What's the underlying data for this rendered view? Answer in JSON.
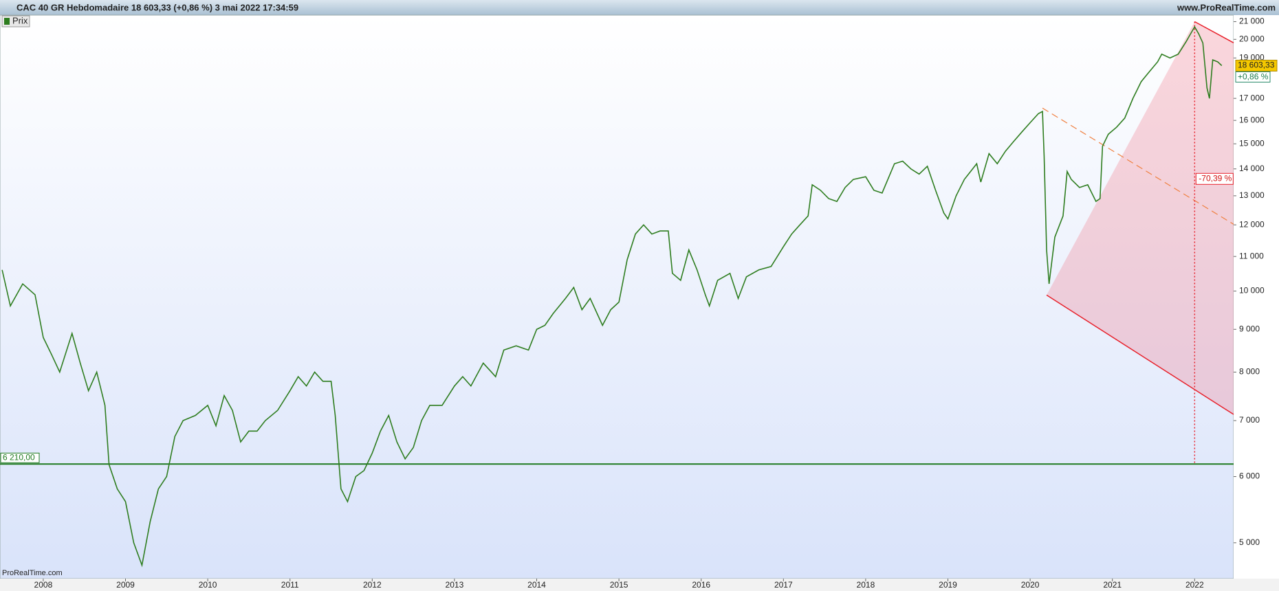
{
  "header": {
    "title": "CAC 40 GR Hebdomadaire 18 603,33 (+0,86 %) 3 mai 2022 17:34:59",
    "site": "www.ProRealTime.com"
  },
  "chart_data": {
    "type": "line",
    "log_scale": true,
    "grid": false,
    "watermark": "ProRealTime.com",
    "x": [
      2007.5,
      2007.6,
      2007.75,
      2007.9,
      2008.0,
      2008.1,
      2008.2,
      2008.35,
      2008.45,
      2008.55,
      2008.65,
      2008.75,
      2008.8,
      2008.9,
      2009.0,
      2009.1,
      2009.2,
      2009.3,
      2009.4,
      2009.5,
      2009.6,
      2009.7,
      2009.85,
      2010.0,
      2010.1,
      2010.2,
      2010.3,
      2010.4,
      2010.5,
      2010.6,
      2010.7,
      2010.85,
      2011.0,
      2011.1,
      2011.2,
      2011.3,
      2011.4,
      2011.5,
      2011.55,
      2011.62,
      2011.7,
      2011.8,
      2011.9,
      2012.0,
      2012.1,
      2012.2,
      2012.3,
      2012.4,
      2012.5,
      2012.6,
      2012.7,
      2012.85,
      2013.0,
      2013.1,
      2013.2,
      2013.35,
      2013.45,
      2013.5,
      2013.6,
      2013.75,
      2013.9,
      2014.0,
      2014.1,
      2014.2,
      2014.35,
      2014.45,
      2014.55,
      2014.65,
      2014.8,
      2014.9,
      2015.0,
      2015.1,
      2015.2,
      2015.3,
      2015.4,
      2015.5,
      2015.6,
      2015.65,
      2015.75,
      2015.85,
      2015.95,
      2016.05,
      2016.1,
      2016.2,
      2016.35,
      2016.45,
      2016.55,
      2016.7,
      2016.85,
      2017.0,
      2017.1,
      2017.2,
      2017.3,
      2017.35,
      2017.45,
      2017.55,
      2017.65,
      2017.75,
      2017.85,
      2018.0,
      2018.1,
      2018.2,
      2018.35,
      2018.45,
      2018.55,
      2018.65,
      2018.75,
      2018.85,
      2018.95,
      2019.0,
      2019.1,
      2019.2,
      2019.35,
      2019.4,
      2019.5,
      2019.6,
      2019.7,
      2019.8,
      2019.9,
      2020.0,
      2020.1,
      2020.15,
      2020.17,
      2020.2,
      2020.23,
      2020.3,
      2020.4,
      2020.45,
      2020.5,
      2020.6,
      2020.7,
      2020.8,
      2020.85,
      2020.88,
      2020.95,
      2021.05,
      2021.15,
      2021.25,
      2021.35,
      2021.45,
      2021.55,
      2021.6,
      2021.7,
      2021.8,
      2021.9,
      2021.95,
      2022.0,
      2022.05,
      2022.1,
      2022.15,
      2022.18,
      2022.22,
      2022.28,
      2022.33
    ],
    "series": [
      {
        "name": "Prix",
        "color": "#2e7d1f",
        "values": [
          10600,
          9600,
          10200,
          9900,
          8800,
          8400,
          8000,
          8900,
          8200,
          7600,
          8000,
          7300,
          6200,
          5800,
          5600,
          5000,
          4700,
          5300,
          5800,
          6000,
          6700,
          7000,
          7100,
          7300,
          6900,
          7500,
          7200,
          6600,
          6800,
          6800,
          7000,
          7200,
          7600,
          7900,
          7700,
          8000,
          7800,
          7800,
          7100,
          5800,
          5600,
          6000,
          6100,
          6400,
          6800,
          7100,
          6600,
          6300,
          6500,
          7000,
          7300,
          7300,
          7700,
          7900,
          7700,
          8200,
          8000,
          7900,
          8500,
          8600,
          8500,
          9000,
          9100,
          9400,
          9800,
          10100,
          9500,
          9800,
          9100,
          9500,
          9700,
          10900,
          11700,
          12000,
          11700,
          11800,
          11800,
          10500,
          10300,
          11200,
          10600,
          9900,
          9600,
          10300,
          10500,
          9800,
          10400,
          10600,
          10700,
          11300,
          11700,
          12000,
          12300,
          13400,
          13200,
          12900,
          12800,
          13300,
          13600,
          13700,
          13200,
          13100,
          14200,
          14300,
          14000,
          13800,
          14100,
          13200,
          12400,
          12200,
          13000,
          13600,
          14200,
          13500,
          14600,
          14200,
          14700,
          15100,
          15500,
          15900,
          16300,
          16400,
          14500,
          11200,
          10200,
          11600,
          12300,
          13900,
          13600,
          13300,
          13400,
          12800,
          12900,
          14900,
          15400,
          15700,
          16100,
          17000,
          17800,
          18300,
          18800,
          19200,
          19000,
          19200,
          19900,
          20300,
          20700,
          20300,
          19800,
          17500,
          17000,
          18900,
          18800,
          18603.33
        ]
      }
    ],
    "xlim": [
      2007.474,
      2022.474
    ],
    "xticks": [
      2008,
      2009,
      2010,
      2011,
      2012,
      2013,
      2014,
      2015,
      2016,
      2017,
      2018,
      2019,
      2020,
      2021,
      2022
    ],
    "ylim": [
      4530,
      21380
    ],
    "yticks": [
      {
        "value": 5000,
        "label": "5 000"
      },
      {
        "value": 6000,
        "label": "6 000"
      },
      {
        "value": 7000,
        "label": "7 000"
      },
      {
        "value": 8000,
        "label": "8 000"
      },
      {
        "value": 9000,
        "label": "9 000"
      },
      {
        "value": 10000,
        "label": "10 000"
      },
      {
        "value": 11000,
        "label": "11 000"
      },
      {
        "value": 12000,
        "label": "12 000"
      },
      {
        "value": 13000,
        "label": "13 000"
      },
      {
        "value": 14000,
        "label": "14 000"
      },
      {
        "value": 15000,
        "label": "15 000"
      },
      {
        "value": 16000,
        "label": "16 000"
      },
      {
        "value": 17000,
        "label": "17 000"
      },
      {
        "value": 19000,
        "label": "19 000"
      },
      {
        "value": 20000,
        "label": "20 000"
      },
      {
        "value": 21000,
        "label": "21 000"
      }
    ],
    "last_value": {
      "value": 18603.33,
      "label": "18 603,33"
    },
    "change_label": "+0,86 %",
    "hline": {
      "value": 6210,
      "label": "6 210,00",
      "color": "#1f7a1f"
    },
    "drawings": {
      "polygon": [
        [
          2020.2,
          9890
        ],
        [
          2022.0,
          21000
        ],
        [
          2022.474,
          19810
        ],
        [
          2022.474,
          7120
        ]
      ],
      "dashed_line": [
        [
          2020.15,
          16550
        ],
        [
          2022.474,
          12020
        ]
      ],
      "dotted_x": 2022.0,
      "percent": {
        "label": "-70,39 %",
        "x": 2022.0,
        "y": 13620
      }
    }
  }
}
